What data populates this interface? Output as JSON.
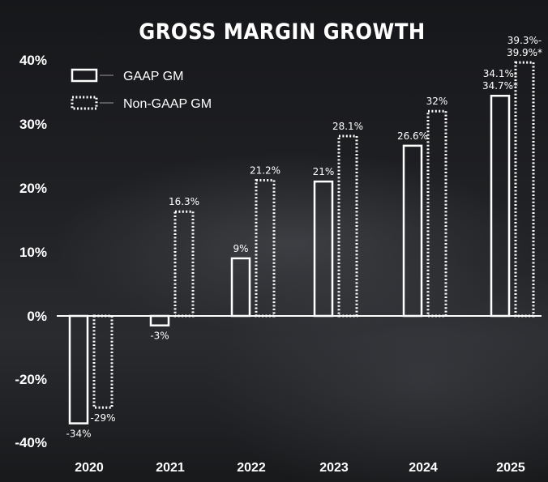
{
  "chart_data": {
    "type": "bar",
    "title": "GROSS MARGIN GROWTH",
    "categories": [
      "2020",
      "2021",
      "2022",
      "2023",
      "2024",
      "2025"
    ],
    "ylim": [
      -40,
      40
    ],
    "yticks": [
      {
        "value": 40,
        "label": "40%"
      },
      {
        "value": 30,
        "label": "30%"
      },
      {
        "value": 20,
        "label": "20%"
      },
      {
        "value": 10,
        "label": "10%"
      },
      {
        "value": 0,
        "label": "0%"
      },
      {
        "value": -20,
        "label": "-20%"
      },
      {
        "value": -40,
        "label": "-40%"
      }
    ],
    "legend_position": "top-left",
    "series": [
      {
        "name": "GAAP GM",
        "style": "solid",
        "values": [
          -34,
          -3,
          9,
          21,
          26.6,
          34.4
        ],
        "labels": [
          "-34%",
          "-3%",
          "9%",
          "21%",
          "26.6%",
          "34.1%-\n34.7%*"
        ]
      },
      {
        "name": "Non-GAAP GM",
        "style": "dotted",
        "values": [
          -29,
          16.3,
          21.2,
          28.1,
          32,
          39.6
        ],
        "labels": [
          "-29%",
          "16.3%",
          "21.2%",
          "28.1%",
          "32%",
          "39.3%-\n39.9%*"
        ]
      }
    ]
  }
}
